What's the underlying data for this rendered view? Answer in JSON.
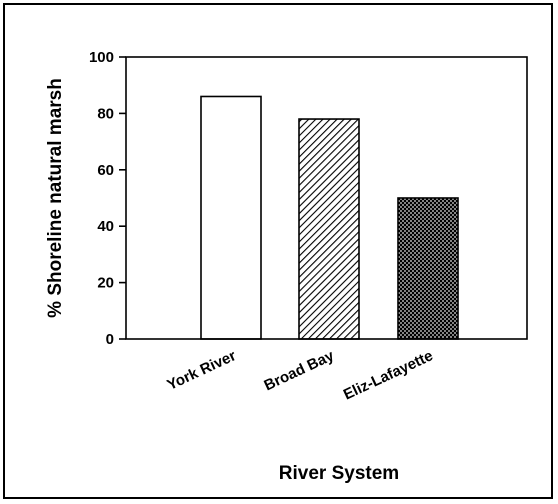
{
  "chart_data": {
    "type": "bar",
    "categories": [
      "York River",
      "Broad Bay",
      "Eliz-Lafayette"
    ],
    "values": [
      86,
      78,
      50
    ],
    "xlabel": "River System",
    "ylabel": "% Shoreline natural marsh",
    "ylim": [
      0,
      100
    ],
    "yticks": [
      0,
      20,
      40,
      60,
      80,
      100
    ],
    "grid": false,
    "legend": "none",
    "bar_fills": [
      "solid-white",
      "diagonal-hatch",
      "crosshatch-dark"
    ]
  }
}
